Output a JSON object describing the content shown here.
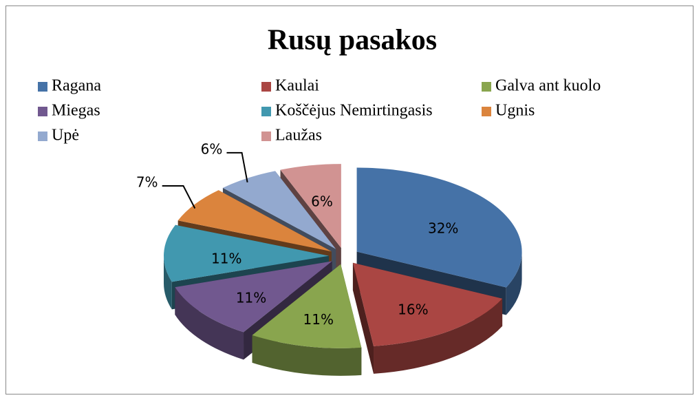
{
  "chart_data": {
    "type": "pie",
    "title": "Rusų pasakos",
    "categories": [
      "Ragana",
      "Kaulai",
      "Galva ant kuolo",
      "Miegas",
      "Koščėjus Nemirtingasis",
      "Ugnis",
      "Upė",
      "Laužas"
    ],
    "values": [
      32,
      16,
      11,
      11,
      11,
      7,
      6,
      6
    ],
    "value_labels": [
      "32%",
      "16%",
      "11%",
      "11%",
      "11%",
      "7%",
      "6%",
      "6%"
    ],
    "colors": [
      "#4572a7",
      "#aa4643",
      "#89a54e",
      "#71588f",
      "#4198af",
      "#db843d",
      "#93a9cf",
      "#d19392"
    ],
    "legend": "top"
  }
}
